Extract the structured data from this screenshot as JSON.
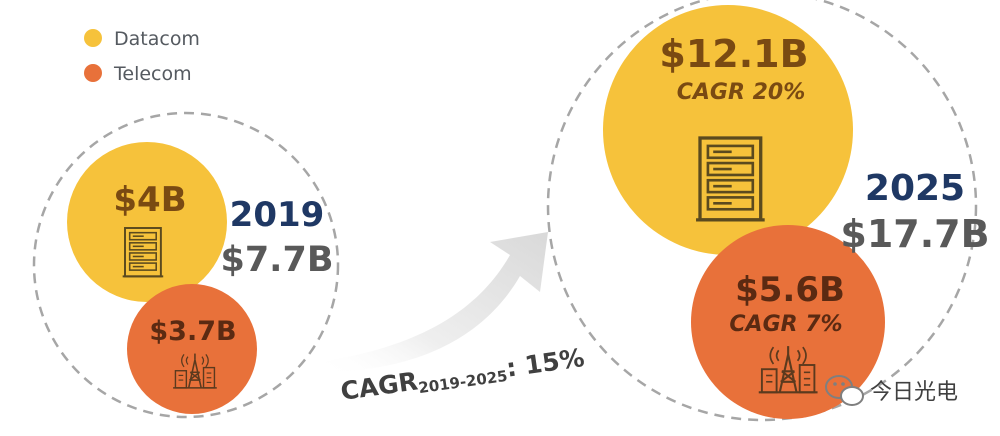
{
  "legend": [
    {
      "label": "Datacom",
      "color": "#f6c23b"
    },
    {
      "label": "Telecom",
      "color": "#e8713a"
    }
  ],
  "year_2019": {
    "year": "2019",
    "total": "$7.7B",
    "datacom_value": "$4B",
    "telecom_value": "$3.7B"
  },
  "year_2025": {
    "year": "2025",
    "total": "$17.7B",
    "datacom_value": "$12.1B",
    "datacom_cagr": "CAGR 20%",
    "telecom_value": "$5.6B",
    "telecom_cagr": "CAGR 7%"
  },
  "growth": {
    "label_main": "CAGR",
    "label_sub": "2019-2025",
    "label_value": ": 15%"
  },
  "watermark": {
    "icon": "wechat-icon",
    "text": "今日光电"
  },
  "icons": {
    "datacom": "server-rack-icon",
    "telecom": "cell-tower-icon"
  },
  "colors": {
    "datacom": "#f6c23b",
    "telecom": "#e8713a",
    "year": "#1f3864",
    "total": "#595959",
    "value_text": "#7a4a12",
    "dashed": "#a6a6a6",
    "arrow": "#e6e6e6"
  }
}
